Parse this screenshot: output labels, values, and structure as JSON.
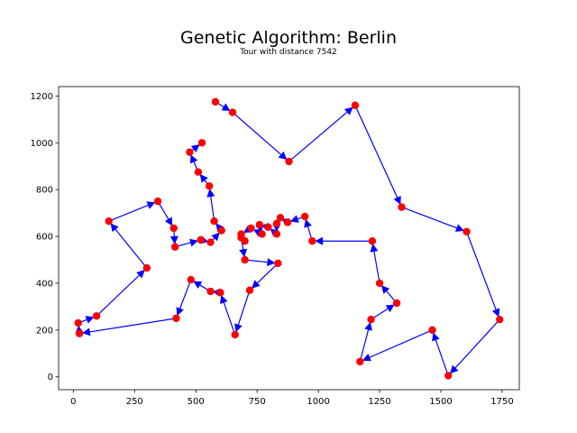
{
  "figure": {
    "title": "Genetic Algorithm: Berlin",
    "subtitle": "Tour with distance 7542"
  },
  "chart_data": {
    "type": "line",
    "title": "Genetic Algorithm: Berlin",
    "subtitle": "Tour with distance 7542",
    "xlabel": "",
    "ylabel": "",
    "xlim": [
      -60,
      1820
    ],
    "ylim": [
      -55,
      1240
    ],
    "xticks": [
      0,
      250,
      500,
      750,
      1000,
      1250,
      1500,
      1750
    ],
    "yticks": [
      0,
      200,
      400,
      600,
      800,
      1000,
      1200
    ],
    "grid": false,
    "point_color": "#ff0000",
    "edge_color": "#0000ff",
    "tour": [
      [
        580,
        1175
      ],
      [
        650,
        1130
      ],
      [
        880,
        920
      ],
      [
        1150,
        1160
      ],
      [
        1340,
        725
      ],
      [
        1605,
        620
      ],
      [
        1740,
        245
      ],
      [
        1530,
        5
      ],
      [
        1465,
        200
      ],
      [
        1170,
        65
      ],
      [
        1215,
        245
      ],
      [
        1320,
        315
      ],
      [
        1250,
        400
      ],
      [
        1220,
        580
      ],
      [
        975,
        580
      ],
      [
        945,
        685
      ],
      [
        875,
        660
      ],
      [
        845,
        680
      ],
      [
        830,
        655
      ],
      [
        830,
        610
      ],
      [
        795,
        640
      ],
      [
        760,
        650
      ],
      [
        770,
        610
      ],
      [
        725,
        635
      ],
      [
        685,
        610
      ],
      [
        700,
        580
      ],
      [
        685,
        595
      ],
      [
        700,
        500
      ],
      [
        835,
        485
      ],
      [
        720,
        370
      ],
      [
        660,
        180
      ],
      [
        600,
        360
      ],
      [
        560,
        365
      ],
      [
        480,
        415
      ],
      [
        420,
        250
      ],
      [
        25,
        185
      ],
      [
        20,
        230
      ],
      [
        95,
        260
      ],
      [
        300,
        465
      ],
      [
        145,
        665
      ],
      [
        345,
        750
      ],
      [
        410,
        635
      ],
      [
        415,
        555
      ],
      [
        520,
        585
      ],
      [
        560,
        575
      ],
      [
        605,
        625
      ],
      [
        575,
        665
      ],
      [
        555,
        815
      ],
      [
        510,
        875
      ],
      [
        475,
        960
      ],
      [
        525,
        1000
      ]
    ]
  }
}
